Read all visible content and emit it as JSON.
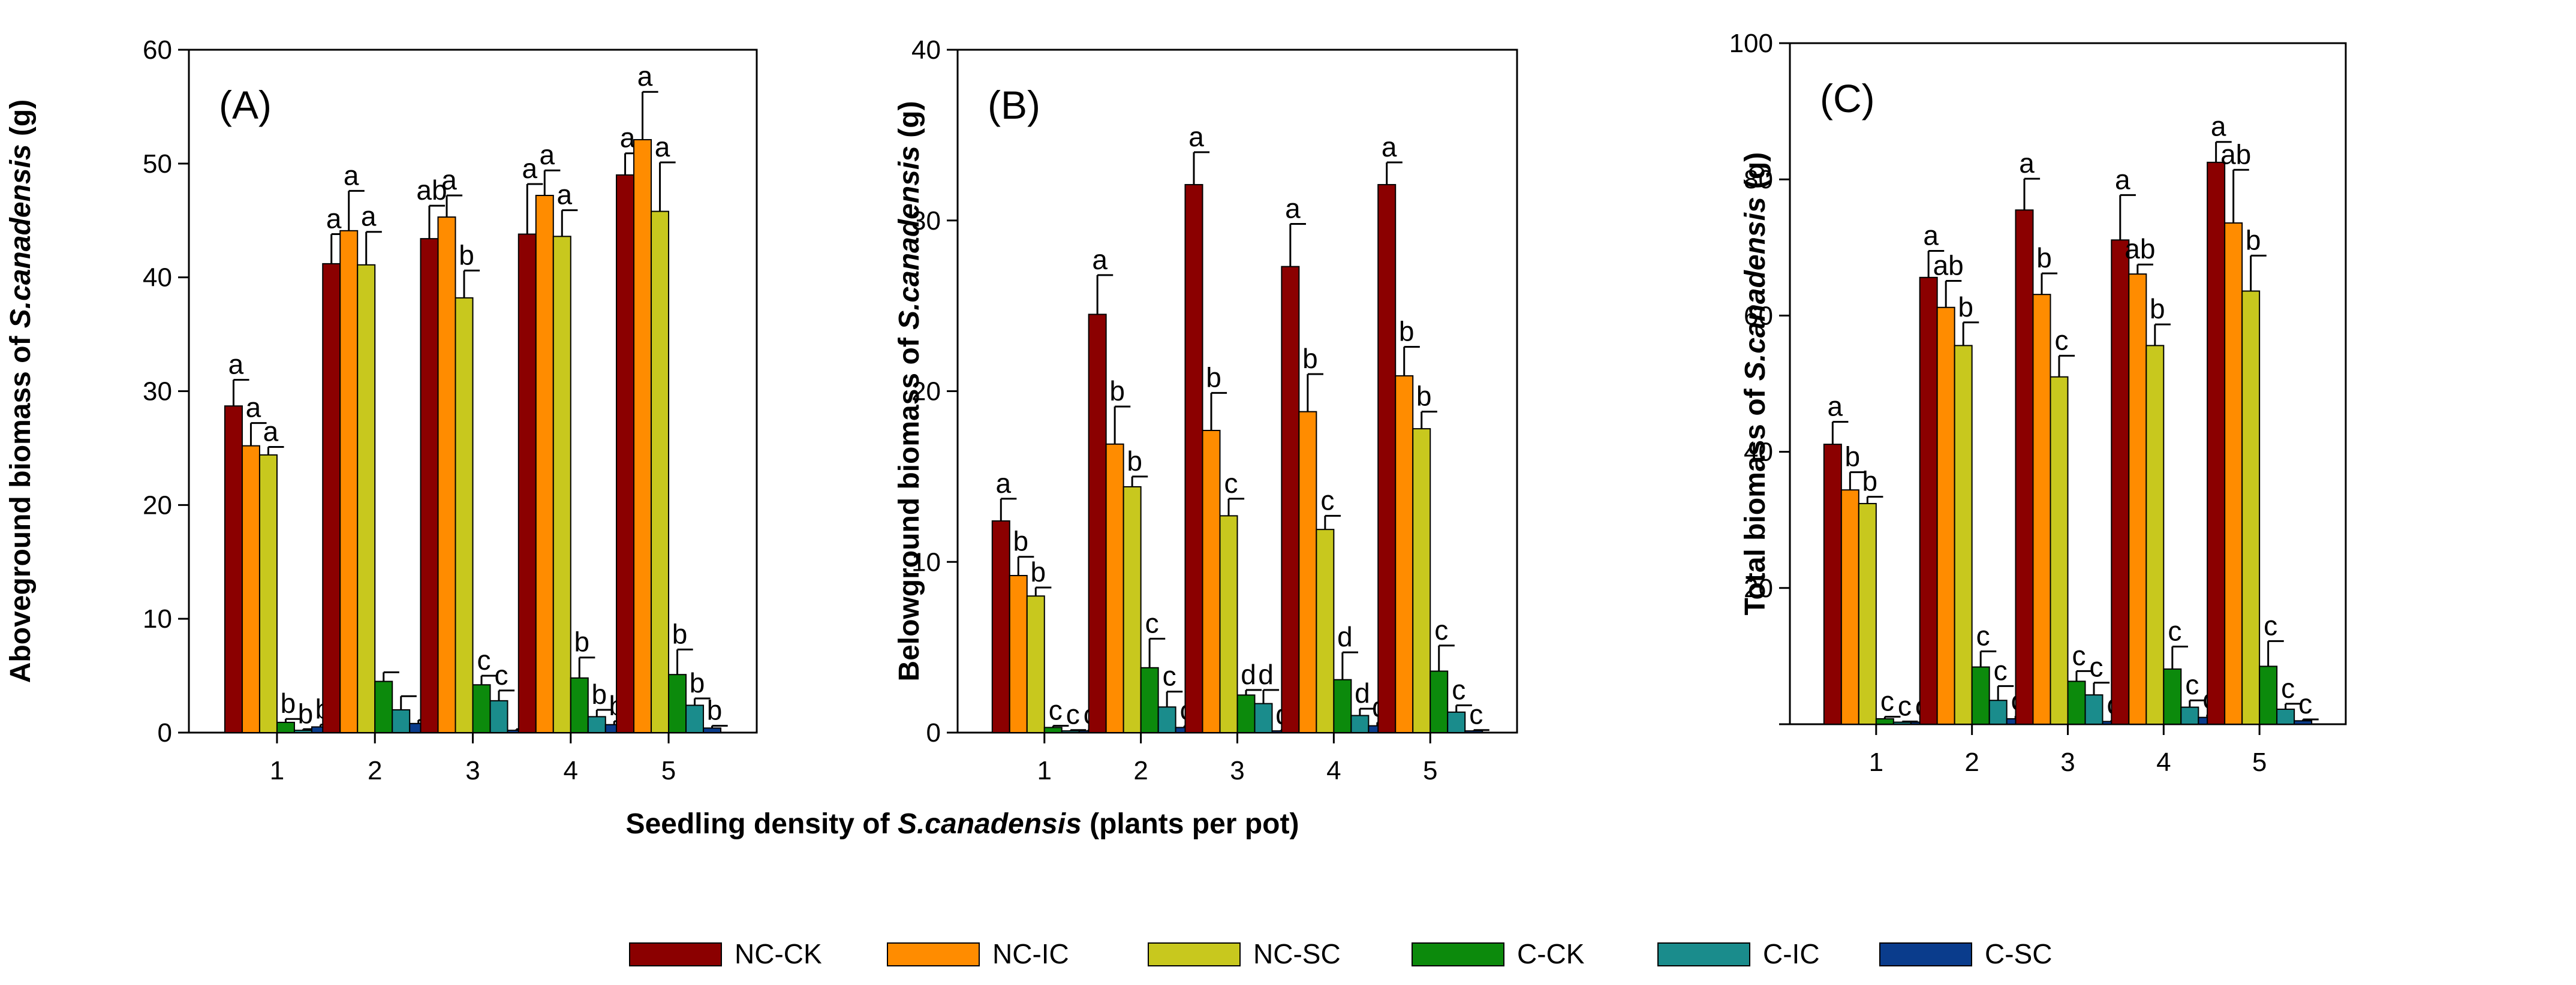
{
  "series_colors": [
    "#8b0000",
    "#ff8c00",
    "#c8c81e",
    "#0c8a0c",
    "#1a8c8c",
    "#0a3c8c"
  ],
  "legend": {
    "items": [
      {
        "label": "NC-CK",
        "color": "#8b0000"
      },
      {
        "label": "NC-IC",
        "color": "#ff8c00"
      },
      {
        "label": "NC-SC",
        "color": "#c8c81e"
      },
      {
        "label": "C-CK",
        "color": "#0c8a0c"
      },
      {
        "label": "C-IC",
        "color": "#1a8c8c"
      },
      {
        "label": "C-SC",
        "color": "#0a3c8c"
      }
    ]
  },
  "shared_xlabel": {
    "pre": "Seedling density of ",
    "italic": "S.canadensis",
    "post": " (plants per pot)"
  },
  "chart_data": [
    {
      "panel": "(A)",
      "type": "bar",
      "ylabel": {
        "pre": "Aboveground biomass of ",
        "italic": "S.canadensis",
        "post": " (g)"
      },
      "ylim": [
        0,
        60
      ],
      "yticks": [
        "0",
        "10",
        "20",
        "30",
        "40",
        "50",
        "60"
      ],
      "categories": [
        "1",
        "2",
        "3",
        "4",
        "5"
      ],
      "series": [
        {
          "name": "NC-CK",
          "values": [
            28.7,
            41.2,
            43.4,
            43.8,
            49.0
          ],
          "errors": [
            2.3,
            2.6,
            2.9,
            4.4,
            1.9
          ],
          "labels": [
            "a",
            "a",
            "ab",
            "a",
            "a"
          ]
        },
        {
          "name": "NC-IC",
          "values": [
            25.2,
            44.1,
            45.3,
            47.2,
            52.1
          ],
          "errors": [
            2.0,
            3.5,
            1.9,
            2.2,
            4.2
          ],
          "labels": [
            "a",
            "a",
            "a",
            "a",
            "a"
          ]
        },
        {
          "name": "NC-SC",
          "values": [
            24.4,
            41.1,
            38.2,
            43.6,
            45.8
          ],
          "errors": [
            0.7,
            2.9,
            2.4,
            2.3,
            4.3
          ],
          "labels": [
            "a",
            "a",
            "b",
            "a",
            "a"
          ]
        },
        {
          "name": "C-CK",
          "values": [
            0.9,
            4.5,
            4.2,
            4.8,
            5.1
          ],
          "errors": [
            0.3,
            0.8,
            0.8,
            1.8,
            2.2
          ],
          "labels": [
            "b",
            "",
            "c",
            "b",
            "b"
          ]
        },
        {
          "name": "C-IC",
          "values": [
            0.2,
            2.0,
            2.8,
            1.4,
            2.4
          ],
          "errors": [
            0.1,
            1.2,
            0.9,
            0.6,
            0.6
          ],
          "labels": [
            "b",
            "",
            "c",
            "b",
            "b"
          ]
        },
        {
          "name": "C-SC",
          "values": [
            0.5,
            0.8,
            0.2,
            0.7,
            0.4
          ],
          "errors": [
            0.2,
            0.3,
            0.1,
            0.3,
            0.2
          ],
          "labels": [
            "b",
            "",
            "",
            "b",
            "b"
          ]
        }
      ]
    },
    {
      "panel": "(B)",
      "type": "bar",
      "ylabel": {
        "pre": "Belowground biomass of ",
        "italic": "S.canadensis",
        "post": " (g)"
      },
      "ylim": [
        0,
        40
      ],
      "yticks": [
        "0",
        "10",
        "20",
        "30",
        "40"
      ],
      "categories": [
        "1",
        "2",
        "3",
        "4",
        "5"
      ],
      "series": [
        {
          "name": "NC-CK",
          "values": [
            12.4,
            24.5,
            32.1,
            27.3,
            32.1
          ],
          "errors": [
            1.3,
            2.3,
            1.9,
            2.5,
            1.3
          ],
          "labels": [
            "a",
            "a",
            "a",
            "a",
            "a"
          ]
        },
        {
          "name": "NC-IC",
          "values": [
            9.2,
            16.9,
            17.7,
            18.8,
            20.9
          ],
          "errors": [
            1.1,
            2.2,
            2.2,
            2.2,
            1.7
          ],
          "labels": [
            "b",
            "b",
            "b",
            "b",
            "b"
          ]
        },
        {
          "name": "NC-SC",
          "values": [
            8.0,
            14.4,
            12.7,
            11.9,
            17.8
          ],
          "errors": [
            0.5,
            0.6,
            1.0,
            0.8,
            1.0
          ],
          "labels": [
            "b",
            "b",
            "c",
            "c",
            "b"
          ]
        },
        {
          "name": "C-CK",
          "values": [
            0.3,
            3.8,
            2.2,
            3.1,
            3.6
          ],
          "errors": [
            0.1,
            1.7,
            0.3,
            1.6,
            1.5
          ],
          "labels": [
            "c",
            "c",
            "d",
            "d",
            "c"
          ]
        },
        {
          "name": "C-IC",
          "values": [
            0.1,
            1.5,
            1.7,
            1.0,
            1.2
          ],
          "errors": [
            0.05,
            0.9,
            0.8,
            0.4,
            0.4
          ],
          "labels": [
            "c",
            "c",
            "d",
            "d",
            "c"
          ]
        },
        {
          "name": "C-SC",
          "values": [
            0.1,
            0.3,
            0.1,
            0.4,
            0.1
          ],
          "errors": [
            0.05,
            0.1,
            0.05,
            0.2,
            0.05
          ],
          "labels": [
            "c",
            "c",
            "d",
            "d",
            "c"
          ]
        }
      ]
    },
    {
      "panel": "(C)",
      "type": "bar",
      "ylabel": {
        "pre": "Total biomass of ",
        "italic": "S.canadensis",
        "post": " (g)"
      },
      "ylim": [
        0,
        100
      ],
      "yticks": [
        "",
        "20",
        "40",
        "60",
        "80",
        "100"
      ],
      "categories": [
        "1",
        "2",
        "3",
        "4",
        "5"
      ],
      "series": [
        {
          "name": "NC-CK",
          "values": [
            41.1,
            65.6,
            75.5,
            71.1,
            82.5
          ],
          "errors": [
            3.3,
            3.9,
            4.6,
            6.6,
            3.0
          ],
          "labels": [
            "a",
            "a",
            "a",
            "a",
            "a"
          ]
        },
        {
          "name": "NC-IC",
          "values": [
            34.4,
            61.2,
            63.1,
            66.1,
            73.6
          ],
          "errors": [
            2.6,
            3.9,
            3.1,
            1.4,
            7.8
          ],
          "labels": [
            "b",
            "ab",
            "b",
            "ab",
            "ab"
          ]
        },
        {
          "name": "NC-SC",
          "values": [
            32.4,
            55.6,
            51.0,
            55.6,
            63.6
          ],
          "errors": [
            1.0,
            3.4,
            3.1,
            3.1,
            5.2
          ],
          "labels": [
            "b",
            "b",
            "c",
            "b",
            "b"
          ]
        },
        {
          "name": "C-CK",
          "values": [
            0.8,
            8.4,
            6.3,
            8.1,
            8.5
          ],
          "errors": [
            0.3,
            2.3,
            1.5,
            3.3,
            3.7
          ],
          "labels": [
            "c",
            "c",
            "c",
            "c",
            "c"
          ]
        },
        {
          "name": "C-IC",
          "values": [
            0.3,
            3.5,
            4.3,
            2.5,
            2.2
          ],
          "errors": [
            0.1,
            2.1,
            1.8,
            1.0,
            0.8
          ],
          "labels": [
            "c",
            "c",
            "c",
            "c",
            "c"
          ]
        },
        {
          "name": "C-SC",
          "values": [
            0.3,
            0.8,
            0.4,
            1.0,
            0.5
          ],
          "errors": [
            0.1,
            0.4,
            0.2,
            0.4,
            0.2
          ],
          "labels": [
            "c",
            "c",
            "c",
            "c",
            "c"
          ]
        }
      ]
    }
  ]
}
